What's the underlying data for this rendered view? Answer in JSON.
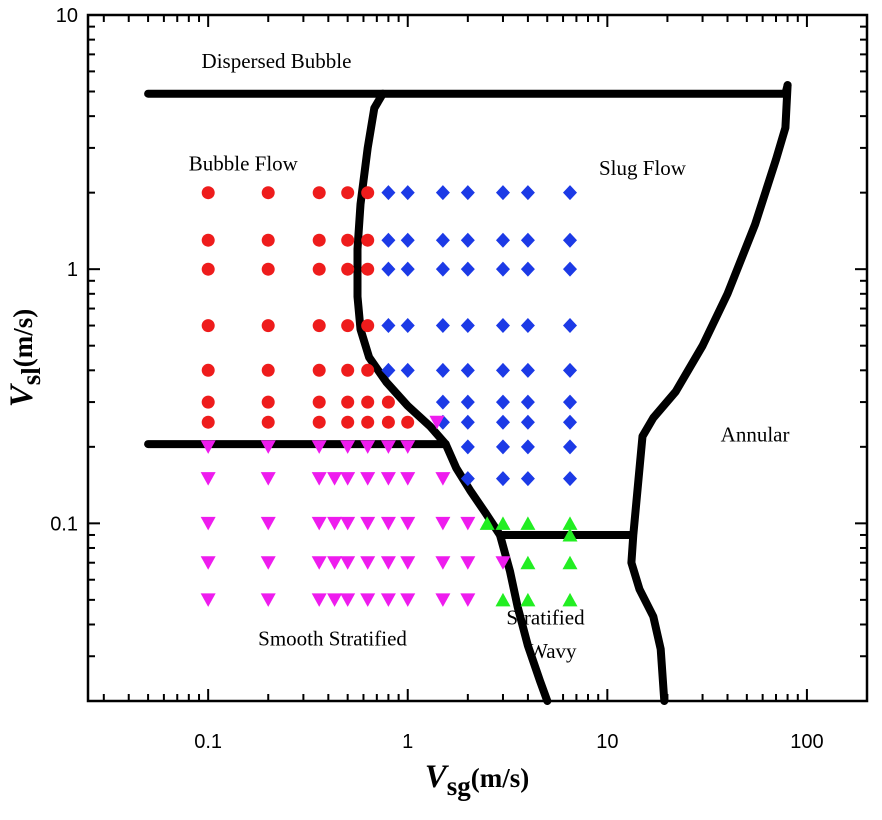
{
  "chart_data": {
    "type": "scatter",
    "title": "",
    "x_axis": {
      "label_main": "V",
      "label_sub": "sg",
      "label_unit": "(m/s)",
      "scale": "log",
      "range": [
        0.025,
        200
      ],
      "ticks": [
        {
          "value": 0.1,
          "label": "0.1"
        },
        {
          "value": 1,
          "label": "1"
        },
        {
          "value": 10,
          "label": "10"
        },
        {
          "value": 100,
          "label": "100"
        }
      ]
    },
    "y_axis": {
      "label_main": "V",
      "label_sub": "sl",
      "label_unit": "(m/s)",
      "scale": "log",
      "range": [
        0.02,
        10
      ],
      "ticks": [
        {
          "value": 0.1,
          "label": "0.1"
        },
        {
          "value": 1,
          "label": "1"
        },
        {
          "value": 10,
          "label": "10"
        }
      ]
    },
    "regions": [
      {
        "name": "dispersed-bubble",
        "label": "Dispersed Bubble",
        "at": [
          0.22,
          6.2
        ]
      },
      {
        "name": "bubble-flow",
        "label": "Bubble Flow",
        "at": [
          0.15,
          2.45
        ]
      },
      {
        "name": "slug-flow",
        "label": "Slug Flow",
        "at": [
          15,
          2.35
        ]
      },
      {
        "name": "annular",
        "label": "Annular",
        "at": [
          55,
          0.21
        ]
      },
      {
        "name": "smooth-stratified",
        "label": "Smooth Stratified",
        "at": [
          0.42,
          0.033
        ]
      },
      {
        "name": "stratified",
        "label": "Stratified",
        "at": [
          4.9,
          0.04
        ]
      },
      {
        "name": "wavy",
        "label": "Wavy",
        "at": [
          5.3,
          0.0295
        ]
      }
    ],
    "boundaries": [
      {
        "name": "dispersed-bubble-boundary",
        "points": [
          [
            0.05,
            4.9
          ],
          [
            78,
            4.9
          ],
          [
            80,
            5.3
          ]
        ]
      },
      {
        "name": "bubble-slug-boundary",
        "points": [
          [
            0.75,
            4.9
          ],
          [
            0.68,
            4.3
          ],
          [
            0.63,
            3.0
          ],
          [
            0.58,
            1.8
          ],
          [
            0.56,
            1.2
          ],
          [
            0.56,
            0.78
          ],
          [
            0.58,
            0.58
          ],
          [
            0.64,
            0.45
          ],
          [
            0.78,
            0.36
          ],
          [
            1.0,
            0.29
          ],
          [
            1.3,
            0.24
          ],
          [
            1.55,
            0.205
          ],
          [
            1.75,
            0.165
          ],
          [
            2.05,
            0.135
          ],
          [
            2.45,
            0.11
          ],
          [
            2.9,
            0.09
          ],
          [
            3.25,
            0.065
          ],
          [
            3.55,
            0.047
          ],
          [
            4.0,
            0.033
          ],
          [
            4.6,
            0.024
          ],
          [
            5.0,
            0.02
          ]
        ]
      },
      {
        "name": "bubble-stratified-boundary",
        "points": [
          [
            0.05,
            0.205
          ],
          [
            1.55,
            0.205
          ]
        ]
      },
      {
        "name": "slug-annular-boundary",
        "points": [
          [
            80,
            5.3
          ],
          [
            78,
            3.6
          ],
          [
            70,
            2.7
          ],
          [
            55,
            1.5
          ],
          [
            40,
            0.8
          ],
          [
            30,
            0.5
          ],
          [
            22,
            0.33
          ],
          [
            17,
            0.26
          ],
          [
            15,
            0.22
          ],
          [
            13.5,
            0.09
          ],
          [
            13.2,
            0.07
          ],
          [
            14.5,
            0.055
          ],
          [
            17,
            0.043
          ],
          [
            18.5,
            0.032
          ],
          [
            19.3,
            0.02
          ]
        ]
      },
      {
        "name": "slug-stratified-wavy-boundary",
        "points": [
          [
            2.9,
            0.09
          ],
          [
            13.2,
            0.09
          ]
        ]
      }
    ],
    "series": [
      {
        "name": "Bubble flow",
        "marker": "circle",
        "color": "#ee1c1c",
        "points": [
          [
            0.1,
            2.0
          ],
          [
            0.1,
            1.3
          ],
          [
            0.1,
            1.0
          ],
          [
            0.1,
            0.6
          ],
          [
            0.1,
            0.4
          ],
          [
            0.1,
            0.3
          ],
          [
            0.1,
            0.25
          ],
          [
            0.2,
            2.0
          ],
          [
            0.2,
            1.3
          ],
          [
            0.2,
            1.0
          ],
          [
            0.2,
            0.6
          ],
          [
            0.2,
            0.4
          ],
          [
            0.2,
            0.3
          ],
          [
            0.2,
            0.25
          ],
          [
            0.36,
            2.0
          ],
          [
            0.36,
            1.3
          ],
          [
            0.36,
            1.0
          ],
          [
            0.36,
            0.6
          ],
          [
            0.36,
            0.4
          ],
          [
            0.36,
            0.3
          ],
          [
            0.36,
            0.25
          ],
          [
            0.5,
            2.0
          ],
          [
            0.5,
            1.3
          ],
          [
            0.5,
            1.0
          ],
          [
            0.5,
            0.6
          ],
          [
            0.5,
            0.4
          ],
          [
            0.5,
            0.3
          ],
          [
            0.5,
            0.25
          ],
          [
            0.63,
            2.0
          ],
          [
            0.63,
            1.3
          ],
          [
            0.63,
            1.0
          ],
          [
            0.63,
            0.6
          ],
          [
            0.63,
            0.4
          ],
          [
            0.63,
            0.3
          ],
          [
            0.63,
            0.25
          ],
          [
            0.8,
            0.3
          ],
          [
            0.8,
            0.25
          ],
          [
            1.0,
            0.25
          ]
        ]
      },
      {
        "name": "Slug flow",
        "marker": "diamond",
        "color": "#1c3ae6",
        "points": [
          [
            0.8,
            2.0
          ],
          [
            0.8,
            1.3
          ],
          [
            0.8,
            1.0
          ],
          [
            0.8,
            0.6
          ],
          [
            0.8,
            0.4
          ],
          [
            1.0,
            2.0
          ],
          [
            1.0,
            1.3
          ],
          [
            1.0,
            1.0
          ],
          [
            1.0,
            0.6
          ],
          [
            1.0,
            0.4
          ],
          [
            1.5,
            2.0
          ],
          [
            1.5,
            1.3
          ],
          [
            1.5,
            1.0
          ],
          [
            1.5,
            0.6
          ],
          [
            1.5,
            0.4
          ],
          [
            1.5,
            0.3
          ],
          [
            1.5,
            0.25
          ],
          [
            2.0,
            2.0
          ],
          [
            2.0,
            1.3
          ],
          [
            2.0,
            1.0
          ],
          [
            2.0,
            0.6
          ],
          [
            2.0,
            0.4
          ],
          [
            2.0,
            0.3
          ],
          [
            2.0,
            0.25
          ],
          [
            2.0,
            0.2
          ],
          [
            2.0,
            0.15
          ],
          [
            3.0,
            2.0
          ],
          [
            3.0,
            1.3
          ],
          [
            3.0,
            1.0
          ],
          [
            3.0,
            0.6
          ],
          [
            3.0,
            0.4
          ],
          [
            3.0,
            0.3
          ],
          [
            3.0,
            0.25
          ],
          [
            3.0,
            0.2
          ],
          [
            3.0,
            0.15
          ],
          [
            4.0,
            2.0
          ],
          [
            4.0,
            1.3
          ],
          [
            4.0,
            1.0
          ],
          [
            4.0,
            0.6
          ],
          [
            4.0,
            0.4
          ],
          [
            4.0,
            0.3
          ],
          [
            4.0,
            0.25
          ],
          [
            4.0,
            0.2
          ],
          [
            4.0,
            0.15
          ],
          [
            6.5,
            2.0
          ],
          [
            6.5,
            1.3
          ],
          [
            6.5,
            1.0
          ],
          [
            6.5,
            0.6
          ],
          [
            6.5,
            0.4
          ],
          [
            6.5,
            0.3
          ],
          [
            6.5,
            0.25
          ],
          [
            6.5,
            0.2
          ],
          [
            6.5,
            0.15
          ]
        ]
      },
      {
        "name": "Smooth stratified",
        "marker": "triangle-down",
        "color": "#ee1cee",
        "points": [
          [
            0.1,
            0.2
          ],
          [
            0.1,
            0.15
          ],
          [
            0.1,
            0.1
          ],
          [
            0.1,
            0.07
          ],
          [
            0.1,
            0.05
          ],
          [
            0.2,
            0.2
          ],
          [
            0.2,
            0.15
          ],
          [
            0.2,
            0.1
          ],
          [
            0.2,
            0.07
          ],
          [
            0.2,
            0.05
          ],
          [
            0.36,
            0.2
          ],
          [
            0.36,
            0.15
          ],
          [
            0.36,
            0.1
          ],
          [
            0.36,
            0.07
          ],
          [
            0.36,
            0.05
          ],
          [
            0.43,
            0.15
          ],
          [
            0.43,
            0.1
          ],
          [
            0.43,
            0.07
          ],
          [
            0.43,
            0.05
          ],
          [
            0.5,
            0.2
          ],
          [
            0.5,
            0.15
          ],
          [
            0.5,
            0.1
          ],
          [
            0.5,
            0.07
          ],
          [
            0.5,
            0.05
          ],
          [
            0.63,
            0.2
          ],
          [
            0.63,
            0.15
          ],
          [
            0.63,
            0.1
          ],
          [
            0.63,
            0.07
          ],
          [
            0.63,
            0.05
          ],
          [
            0.8,
            0.2
          ],
          [
            0.8,
            0.15
          ],
          [
            0.8,
            0.1
          ],
          [
            0.8,
            0.07
          ],
          [
            0.8,
            0.05
          ],
          [
            1.0,
            0.2
          ],
          [
            1.0,
            0.15
          ],
          [
            1.0,
            0.1
          ],
          [
            1.0,
            0.07
          ],
          [
            1.0,
            0.05
          ],
          [
            1.4,
            0.25
          ],
          [
            1.5,
            0.15
          ],
          [
            1.5,
            0.1
          ],
          [
            1.5,
            0.07
          ],
          [
            1.5,
            0.05
          ],
          [
            2.0,
            0.1
          ],
          [
            2.0,
            0.07
          ],
          [
            2.0,
            0.05
          ],
          [
            3.0,
            0.07
          ]
        ]
      },
      {
        "name": "Stratified wavy",
        "marker": "triangle-up",
        "color": "#22ee22",
        "points": [
          [
            2.5,
            0.1
          ],
          [
            3.0,
            0.1
          ],
          [
            3.0,
            0.05
          ],
          [
            4.0,
            0.1
          ],
          [
            4.0,
            0.07
          ],
          [
            4.0,
            0.05
          ],
          [
            6.5,
            0.1
          ],
          [
            6.5,
            0.09
          ],
          [
            6.5,
            0.07
          ],
          [
            6.5,
            0.05
          ]
        ]
      }
    ]
  }
}
